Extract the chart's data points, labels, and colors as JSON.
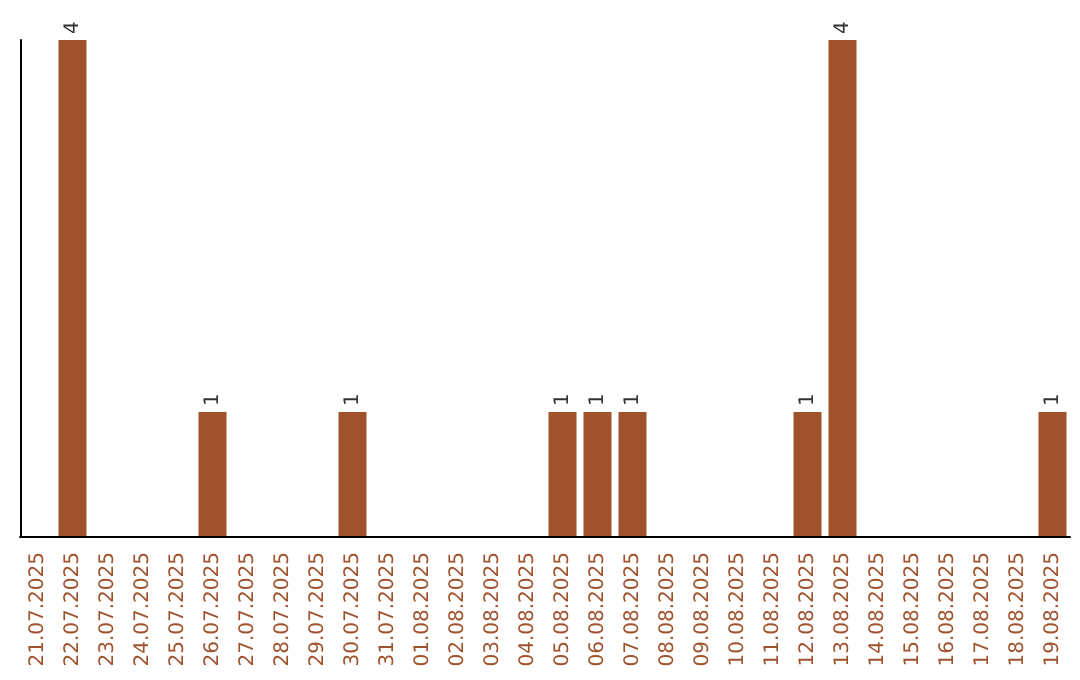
{
  "chart_data": {
    "type": "bar",
    "categories": [
      "21.07.2025",
      "22.07.2025",
      "23.07.2025",
      "24.07.2025",
      "25.07.2025",
      "26.07.2025",
      "27.07.2025",
      "28.07.2025",
      "29.07.2025",
      "30.07.2025",
      "31.07.2025",
      "01.08.2025",
      "02.08.2025",
      "03.08.2025",
      "04.08.2025",
      "05.08.2025",
      "06.08.2025",
      "07.08.2025",
      "08.08.2025",
      "09.08.2025",
      "10.08.2025",
      "11.08.2025",
      "12.08.2025",
      "13.08.2025",
      "14.08.2025",
      "15.08.2025",
      "16.08.2025",
      "17.08.2025",
      "18.08.2025",
      "19.08.2025"
    ],
    "values": [
      0,
      4,
      0,
      0,
      0,
      1,
      0,
      0,
      0,
      1,
      0,
      0,
      0,
      0,
      0,
      1,
      1,
      1,
      0,
      0,
      0,
      0,
      1,
      4,
      0,
      0,
      0,
      0,
      0,
      1
    ],
    "value_labels": [
      null,
      "4",
      null,
      null,
      null,
      "1",
      null,
      null,
      null,
      "1",
      null,
      null,
      null,
      null,
      null,
      "1",
      "1",
      "1",
      null,
      null,
      null,
      null,
      "1",
      "4",
      null,
      null,
      null,
      null,
      null,
      "1"
    ],
    "color": "#a0522d"
  }
}
